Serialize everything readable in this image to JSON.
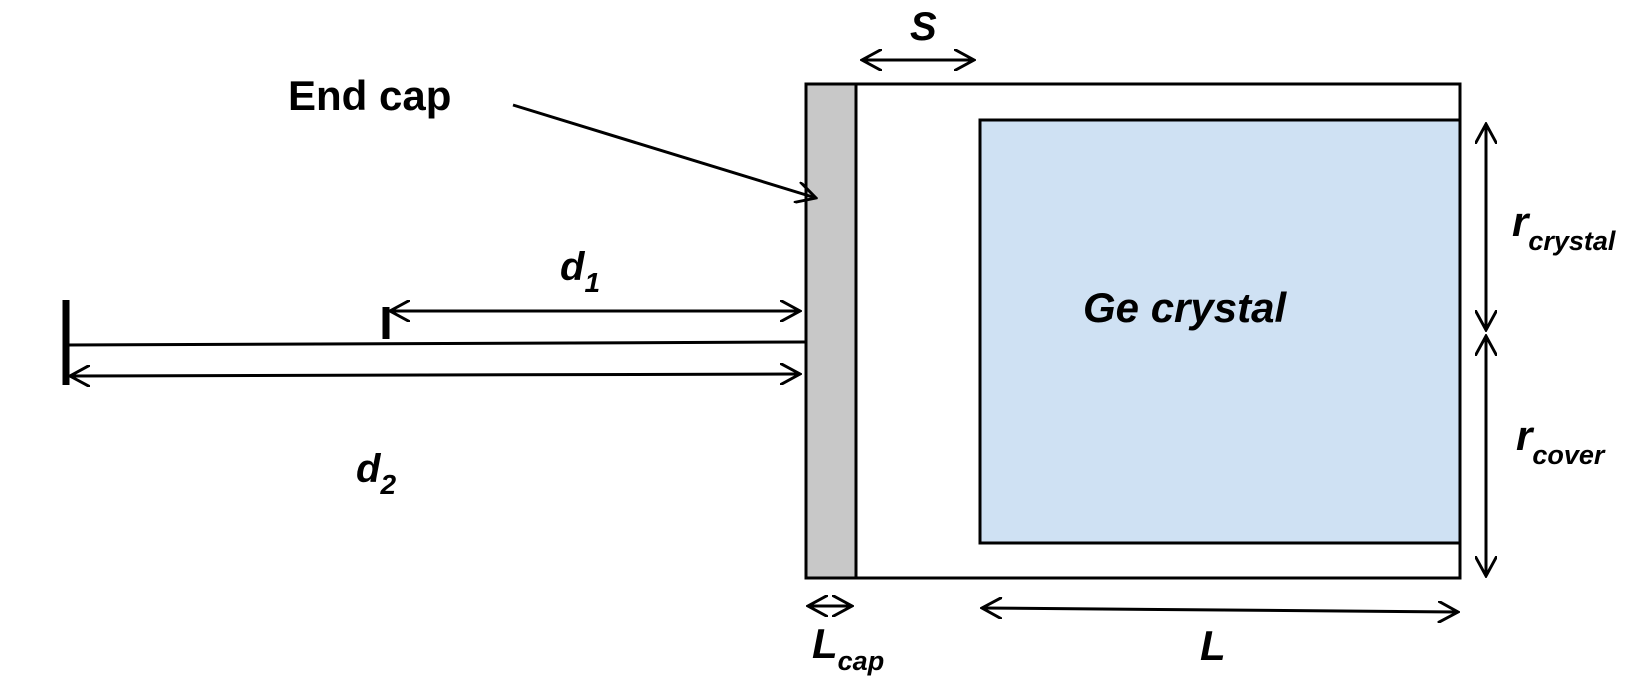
{
  "labels": {
    "end_cap": "End cap",
    "s": "S",
    "d1_main": "d",
    "d1_sub": "1",
    "d2_main": "d",
    "d2_sub": "2",
    "ge_crystal": "Ge crystal",
    "r_crystal_main": "r",
    "r_crystal_sub": "crystal",
    "r_cover_main": "r",
    "r_cover_sub": "cover",
    "l_cap_main": "L",
    "l_cap_sub": "cap",
    "l": "L"
  },
  "colors": {
    "end_cap_fill": "#c8c8c8",
    "crystal_fill": "#cfe1f3",
    "line": "#000000",
    "background": "#ffffff"
  }
}
